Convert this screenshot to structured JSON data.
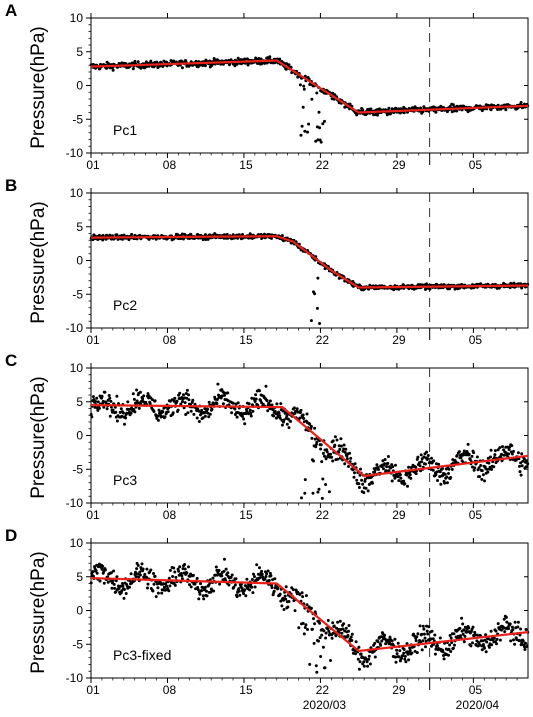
{
  "chart_data": [
    {
      "type": "scatter",
      "panel_label": "A",
      "annotation": "Pc1",
      "ylabel": "Pressure(hPa)",
      "ylim": [
        -10,
        10
      ],
      "yticks": [
        -10,
        -5,
        0,
        5,
        10
      ],
      "xlim": [
        0,
        40
      ],
      "xticks": [
        "01",
        "08",
        "15",
        "22",
        "29",
        "05"
      ],
      "grid": false,
      "fit_line": {
        "x": [
          0,
          17,
          24.5,
          40
        ],
        "y": [
          2.8,
          3.7,
          -4.0,
          -3.0
        ],
        "color": "#e8221b"
      },
      "observed": {
        "noise": 0.5,
        "dips": [
          [
            19,
            21.5,
            -8.5
          ]
        ],
        "color": "#000000"
      }
    },
    {
      "type": "scatter",
      "panel_label": "B",
      "annotation": "Pc2",
      "ylabel": "Pressure(hPa)",
      "ylim": [
        -10,
        10
      ],
      "yticks": [
        -10,
        -5,
        0,
        5,
        10
      ],
      "xlim": [
        0,
        40
      ],
      "xticks": [
        "01",
        "08",
        "15",
        "22",
        "29",
        "05"
      ],
      "grid": false,
      "fit_line": {
        "x": [
          0,
          17,
          18.5,
          22,
          24.5,
          40
        ],
        "y": [
          3.4,
          3.6,
          2.8,
          -1.5,
          -4.0,
          -3.7
        ],
        "color": "#e8221b"
      },
      "observed": {
        "noise": 0.35,
        "dips": [
          [
            20,
            21.5,
            -9.5
          ]
        ],
        "color": "#000000"
      }
    },
    {
      "type": "scatter",
      "panel_label": "C",
      "annotation": "Pc3",
      "ylabel": "Pressure(hPa)",
      "ylim": [
        -10,
        10
      ],
      "yticks": [
        -10,
        -5,
        0,
        5,
        10
      ],
      "xlim": [
        0,
        40
      ],
      "xticks": [
        "01",
        "08",
        "15",
        "22",
        "29",
        "05"
      ],
      "grid": false,
      "fit_line": {
        "x": [
          0,
          17.5,
          25,
          40
        ],
        "y": [
          4.5,
          4.2,
          -6.0,
          -3.0
        ],
        "color": "#e8221b"
      },
      "observed": {
        "noise": 1.6,
        "dips": [
          [
            19,
            22,
            -9.5
          ]
        ],
        "color": "#000000"
      }
    },
    {
      "type": "scatter",
      "panel_label": "D",
      "annotation": "Pc3-fixed",
      "ylabel": "Pressure(hPa)",
      "ylim": [
        -10,
        10
      ],
      "yticks": [
        -10,
        -5,
        0,
        5,
        10
      ],
      "xlim": [
        0,
        40
      ],
      "xticks": [
        "01",
        "08",
        "15",
        "22",
        "29",
        "05"
      ],
      "month_labels": [
        "2020/03",
        "2020/04"
      ],
      "grid": false,
      "fit_line": {
        "x": [
          0,
          17,
          24.5,
          40
        ],
        "y": [
          4.8,
          4.0,
          -6.0,
          -3.2
        ],
        "color": "#e8221b"
      },
      "observed": {
        "noise": 1.6,
        "dips": [
          [
            19,
            22,
            -9.5
          ]
        ],
        "color": "#000000"
      }
    }
  ]
}
